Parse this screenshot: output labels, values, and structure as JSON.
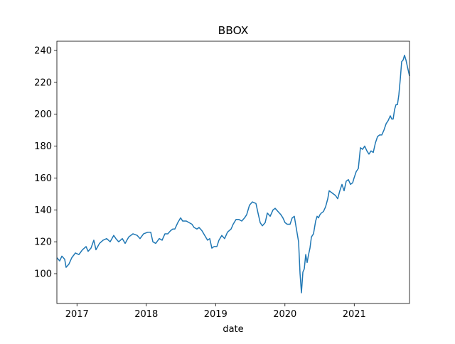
{
  "chart_data": {
    "type": "line",
    "title": "BBOX",
    "xlabel": "date",
    "x": [
      2016.71,
      2016.751,
      2016.782,
      2016.823,
      2016.843,
      2016.884,
      2016.925,
      2016.977,
      2017.028,
      2017.079,
      2017.131,
      2017.161,
      2017.202,
      2017.243,
      2017.274,
      2017.325,
      2017.377,
      2017.428,
      2017.479,
      2017.53,
      2017.561,
      2017.602,
      2017.654,
      2017.695,
      2017.746,
      2017.807,
      2017.869,
      2017.91,
      2017.961,
      2018.023,
      2018.064,
      2018.095,
      2018.136,
      2018.187,
      2018.228,
      2018.269,
      2018.31,
      2018.351,
      2018.382,
      2018.412,
      2018.454,
      2018.495,
      2018.525,
      2018.577,
      2018.618,
      2018.659,
      2018.689,
      2018.73,
      2018.761,
      2018.802,
      2018.843,
      2018.884,
      2018.915,
      2018.946,
      2018.977,
      2019.018,
      2019.048,
      2019.089,
      2019.13,
      2019.171,
      2019.223,
      2019.253,
      2019.295,
      2019.336,
      2019.377,
      2019.418,
      2019.448,
      2019.489,
      2019.53,
      2019.582,
      2019.612,
      2019.643,
      2019.674,
      2019.715,
      2019.746,
      2019.787,
      2019.828,
      2019.859,
      2019.9,
      2019.941,
      2019.971,
      2020.002,
      2020.033,
      2020.074,
      2020.105,
      2020.135,
      2020.166,
      2020.197,
      2020.218,
      2020.238,
      2020.259,
      2020.279,
      2020.3,
      2020.32,
      2020.341,
      2020.361,
      2020.382,
      2020.412,
      2020.443,
      2020.464,
      2020.484,
      2020.505,
      2020.525,
      2020.556,
      2020.587,
      2020.618,
      2020.638,
      2020.669,
      2020.7,
      2020.73,
      2020.761,
      2020.792,
      2020.823,
      2020.853,
      2020.884,
      2020.915,
      2020.946,
      2020.977,
      2020.997,
      2021.028,
      2021.059,
      2021.089,
      2021.12,
      2021.151,
      2021.182,
      2021.212,
      2021.243,
      2021.274,
      2021.305,
      2021.336,
      2021.366,
      2021.397,
      2021.428,
      2021.459,
      2021.489,
      2021.52,
      2021.541,
      2021.561,
      2021.582,
      2021.602,
      2021.623,
      2021.643,
      2021.664,
      2021.684,
      2021.705,
      2021.725,
      2021.746,
      2021.766,
      2021.797
    ],
    "series": [
      {
        "color": "#1f77b4",
        "values": [
          110,
          108,
          111,
          109,
          104,
          106,
          110,
          113,
          112,
          115,
          117,
          114,
          116,
          121,
          115,
          119,
          121,
          122,
          120,
          124,
          122,
          120,
          122,
          119,
          123,
          125,
          124,
          122,
          125,
          126,
          126,
          120,
          119,
          122,
          121,
          125,
          125,
          127,
          128,
          128,
          132,
          135,
          133,
          133,
          132,
          131,
          129,
          128,
          129,
          127,
          124,
          121,
          122,
          116,
          117,
          117,
          121,
          124,
          122,
          126,
          128,
          131,
          134,
          134,
          133,
          135,
          137,
          143,
          145,
          144,
          138,
          132,
          130,
          132,
          138,
          136,
          140,
          141,
          139,
          137,
          135,
          132,
          131,
          131,
          135,
          136,
          128,
          120,
          100,
          88,
          101,
          103,
          112,
          107,
          112,
          116,
          123,
          125,
          133,
          136,
          135,
          137,
          138,
          139,
          142,
          147,
          152,
          151,
          150,
          149,
          147,
          152,
          156,
          152,
          158,
          159,
          156,
          157,
          160,
          164,
          166,
          179,
          178,
          180,
          177,
          175,
          177,
          176,
          182,
          186,
          187,
          187,
          190,
          194,
          196,
          199,
          197,
          197,
          203,
          206,
          206,
          212,
          222,
          233,
          234,
          237,
          234,
          230,
          224
        ]
      }
    ],
    "xlim": [
      2016.71,
      2021.797
    ],
    "ylim": [
      81.3,
      245.8
    ],
    "xticks": [
      2017,
      2018,
      2019,
      2020,
      2021
    ],
    "yticks": [
      100,
      120,
      140,
      160,
      180,
      200,
      220,
      240
    ]
  }
}
